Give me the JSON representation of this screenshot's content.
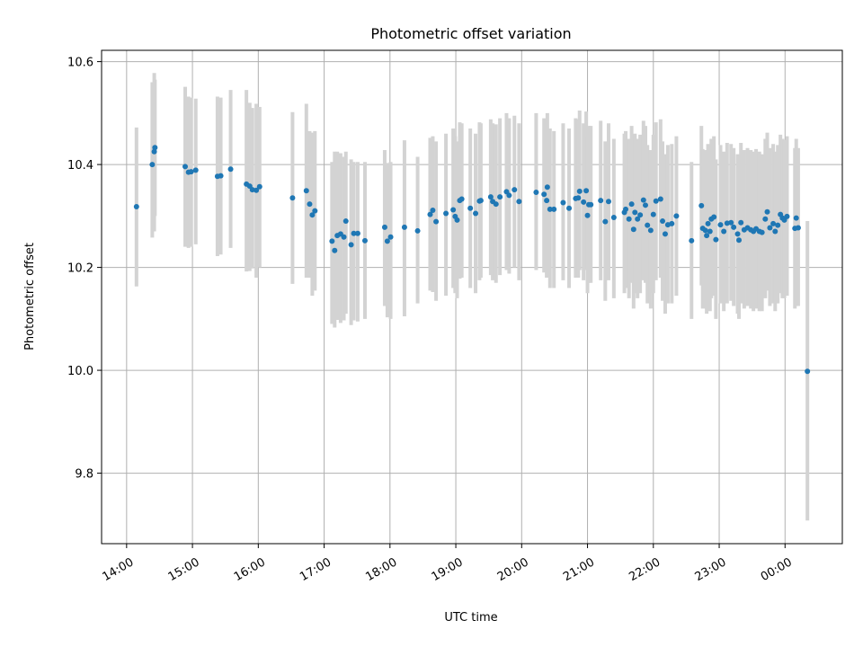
{
  "chart_data": {
    "type": "scatter",
    "title": "Photometric offset variation",
    "xlabel": "UTC time",
    "ylabel": "Photometric offset",
    "xlim": [
      13.62,
      24.87
    ],
    "ylim": [
      9.663,
      10.622
    ],
    "grid": true,
    "xticks": [
      {
        "value": 14,
        "label": "14:00"
      },
      {
        "value": 15,
        "label": "15:00"
      },
      {
        "value": 16,
        "label": "16:00"
      },
      {
        "value": 17,
        "label": "17:00"
      },
      {
        "value": 18,
        "label": "18:00"
      },
      {
        "value": 19,
        "label": "19:00"
      },
      {
        "value": 20,
        "label": "20:00"
      },
      {
        "value": 21,
        "label": "21:00"
      },
      {
        "value": 22,
        "label": "22:00"
      },
      {
        "value": 23,
        "label": "23:00"
      },
      {
        "value": 24,
        "label": "00:00"
      }
    ],
    "yticks": [
      {
        "value": 9.8,
        "label": "9.8"
      },
      {
        "value": 10.0,
        "label": "10.0"
      },
      {
        "value": 10.2,
        "label": "10.2"
      },
      {
        "value": 10.4,
        "label": "10.4"
      },
      {
        "value": 10.6,
        "label": "10.6"
      }
    ],
    "series": [
      {
        "name": "offset",
        "color": "#1f77b4",
        "errorbar_color": "#d3d3d3",
        "points": [
          [
            14.15,
            10.318,
            10.163,
            10.472
          ],
          [
            14.39,
            10.4,
            10.258,
            10.56
          ],
          [
            14.42,
            10.425,
            10.27,
            10.578
          ],
          [
            14.43,
            10.433,
            10.3,
            10.565
          ],
          [
            14.89,
            10.396,
            10.24,
            10.551
          ],
          [
            14.94,
            10.385,
            10.238,
            10.532
          ],
          [
            14.98,
            10.386,
            10.24,
            10.53
          ],
          [
            15.05,
            10.389,
            10.245,
            10.528
          ],
          [
            15.38,
            10.377,
            10.222,
            10.532
          ],
          [
            15.43,
            10.378,
            10.225,
            10.53
          ],
          [
            15.58,
            10.391,
            10.238,
            10.545
          ],
          [
            15.82,
            10.362,
            10.192,
            10.545
          ],
          [
            15.87,
            10.358,
            10.193,
            10.52
          ],
          [
            15.91,
            10.351,
            10.198,
            10.51
          ],
          [
            15.97,
            10.35,
            10.18,
            10.518
          ],
          [
            16.02,
            10.357,
            10.2,
            10.512
          ],
          [
            16.52,
            10.335,
            10.168,
            10.502
          ],
          [
            16.73,
            10.349,
            10.18,
            10.518
          ],
          [
            16.78,
            10.323,
            10.18,
            10.465
          ],
          [
            16.82,
            10.302,
            10.145,
            10.462
          ],
          [
            16.86,
            10.31,
            10.155,
            10.465
          ],
          [
            17.12,
            10.251,
            10.09,
            10.405
          ],
          [
            17.16,
            10.233,
            10.083,
            10.425
          ],
          [
            17.2,
            10.262,
            10.098,
            10.425
          ],
          [
            17.25,
            10.265,
            10.092,
            10.422
          ],
          [
            17.3,
            10.259,
            10.097,
            10.415
          ],
          [
            17.33,
            10.29,
            10.11,
            10.425
          ],
          [
            17.41,
            10.244,
            10.088,
            10.41
          ],
          [
            17.45,
            10.266,
            10.097,
            10.405
          ],
          [
            17.51,
            10.266,
            10.095,
            10.405
          ],
          [
            17.62,
            10.252,
            10.1,
            10.405
          ],
          [
            17.92,
            10.278,
            10.125,
            10.428
          ],
          [
            17.96,
            10.251,
            10.103,
            10.403
          ],
          [
            18.01,
            10.259,
            10.1,
            10.405
          ],
          [
            18.22,
            10.278,
            10.105,
            10.447
          ],
          [
            18.42,
            10.271,
            10.13,
            10.415
          ],
          [
            18.61,
            10.303,
            10.155,
            10.452
          ],
          [
            18.65,
            10.311,
            10.152,
            10.455
          ],
          [
            18.7,
            10.289,
            10.135,
            10.445
          ],
          [
            18.85,
            10.305,
            10.145,
            10.46
          ],
          [
            18.96,
            10.312,
            10.16,
            10.47
          ],
          [
            18.99,
            10.299,
            10.15,
            10.455
          ],
          [
            19.02,
            10.292,
            10.14,
            10.445
          ],
          [
            19.06,
            10.33,
            10.178,
            10.482
          ],
          [
            19.09,
            10.333,
            10.18,
            10.48
          ],
          [
            19.22,
            10.315,
            10.16,
            10.47
          ],
          [
            19.3,
            10.305,
            10.15,
            10.46
          ],
          [
            19.36,
            10.329,
            10.175,
            10.482
          ],
          [
            19.38,
            10.33,
            10.18,
            10.48
          ],
          [
            19.53,
            10.337,
            10.185,
            10.488
          ],
          [
            19.56,
            10.328,
            10.175,
            10.48
          ],
          [
            19.61,
            10.323,
            10.17,
            10.478
          ],
          [
            19.67,
            10.337,
            10.185,
            10.49
          ],
          [
            19.77,
            10.347,
            10.195,
            10.5
          ],
          [
            19.81,
            10.34,
            10.188,
            10.49
          ],
          [
            19.89,
            10.351,
            10.2,
            10.495
          ],
          [
            19.96,
            10.328,
            10.175,
            10.48
          ],
          [
            20.22,
            10.346,
            10.195,
            10.5
          ],
          [
            20.34,
            10.342,
            10.19,
            10.49
          ],
          [
            20.38,
            10.33,
            10.18,
            10.48
          ],
          [
            20.39,
            10.356,
            10.2,
            10.5
          ],
          [
            20.43,
            10.313,
            10.16,
            10.47
          ],
          [
            20.49,
            10.313,
            10.16,
            10.465
          ],
          [
            20.63,
            10.326,
            10.175,
            10.48
          ],
          [
            20.72,
            10.315,
            10.16,
            10.47
          ],
          [
            20.82,
            10.334,
            10.18,
            10.49
          ],
          [
            20.86,
            10.335,
            10.18,
            10.488
          ],
          [
            20.88,
            10.348,
            10.195,
            10.505
          ],
          [
            20.94,
            10.327,
            10.175,
            10.48
          ],
          [
            20.98,
            10.349,
            10.195,
            10.503
          ],
          [
            21.0,
            10.301,
            10.15,
            10.455
          ],
          [
            21.02,
            10.322,
            10.17,
            10.475
          ],
          [
            21.05,
            10.322,
            10.17,
            10.475
          ],
          [
            21.2,
            10.33,
            10.175,
            10.485
          ],
          [
            21.27,
            10.289,
            10.135,
            10.445
          ],
          [
            21.32,
            10.328,
            10.175,
            10.48
          ],
          [
            21.4,
            10.297,
            10.14,
            10.45
          ],
          [
            21.56,
            10.307,
            10.15,
            10.46
          ],
          [
            21.58,
            10.313,
            10.16,
            10.465
          ],
          [
            21.63,
            10.294,
            10.14,
            10.45
          ],
          [
            21.67,
            10.323,
            10.17,
            10.475
          ],
          [
            21.7,
            10.274,
            10.12,
            10.428
          ],
          [
            21.72,
            10.307,
            10.15,
            10.46
          ],
          [
            21.76,
            10.294,
            10.14,
            10.45
          ],
          [
            21.8,
            10.302,
            10.15,
            10.458
          ],
          [
            21.85,
            10.331,
            10.175,
            10.485
          ],
          [
            21.88,
            10.321,
            10.17,
            10.475
          ],
          [
            21.91,
            10.282,
            10.13,
            10.438
          ],
          [
            21.96,
            10.272,
            10.12,
            10.428
          ],
          [
            22.0,
            10.303,
            10.15,
            10.458
          ],
          [
            22.04,
            10.329,
            10.175,
            10.482
          ],
          [
            22.11,
            10.333,
            10.18,
            10.488
          ],
          [
            22.14,
            10.29,
            10.135,
            10.445
          ],
          [
            22.18,
            10.265,
            10.11,
            10.42
          ],
          [
            22.22,
            10.283,
            10.13,
            10.438
          ],
          [
            22.28,
            10.285,
            10.13,
            10.44
          ],
          [
            22.35,
            10.3,
            10.145,
            10.455
          ],
          [
            22.58,
            10.252,
            10.1,
            10.405
          ],
          [
            22.73,
            10.32,
            10.165,
            10.475
          ],
          [
            22.75,
            10.276,
            10.12,
            10.43
          ],
          [
            22.79,
            10.272,
            10.12,
            10.428
          ],
          [
            22.81,
            10.262,
            10.11,
            10.418
          ],
          [
            22.83,
            10.285,
            10.13,
            10.44
          ],
          [
            22.86,
            10.27,
            10.115,
            10.425
          ],
          [
            22.88,
            10.294,
            10.14,
            10.45
          ],
          [
            22.92,
            10.298,
            10.145,
            10.455
          ],
          [
            22.95,
            10.254,
            10.1,
            10.41
          ],
          [
            23.02,
            10.283,
            10.13,
            10.438
          ],
          [
            23.07,
            10.27,
            10.115,
            10.425
          ],
          [
            23.12,
            10.286,
            10.13,
            10.442
          ],
          [
            23.18,
            10.287,
            10.135,
            10.44
          ],
          [
            23.22,
            10.278,
            10.125,
            10.432
          ],
          [
            23.28,
            10.265,
            10.11,
            10.42
          ],
          [
            23.3,
            10.253,
            10.1,
            10.405
          ],
          [
            23.33,
            10.287,
            10.13,
            10.442
          ],
          [
            23.38,
            10.273,
            10.12,
            10.428
          ],
          [
            23.43,
            10.277,
            10.125,
            10.432
          ],
          [
            23.48,
            10.273,
            10.12,
            10.428
          ],
          [
            23.52,
            10.27,
            10.115,
            10.425
          ],
          [
            23.56,
            10.275,
            10.12,
            10.43
          ],
          [
            23.61,
            10.27,
            10.115,
            10.425
          ],
          [
            23.65,
            10.268,
            10.115,
            10.42
          ],
          [
            23.7,
            10.294,
            10.14,
            10.45
          ],
          [
            23.73,
            10.308,
            10.155,
            10.462
          ],
          [
            23.77,
            10.277,
            10.125,
            10.432
          ],
          [
            23.82,
            10.285,
            10.13,
            10.44
          ],
          [
            23.85,
            10.27,
            10.115,
            10.425
          ],
          [
            23.89,
            10.282,
            10.13,
            10.438
          ],
          [
            23.93,
            10.303,
            10.15,
            10.458
          ],
          [
            23.96,
            10.296,
            10.14,
            10.45
          ],
          [
            23.99,
            10.292,
            10.14,
            10.448
          ],
          [
            24.03,
            10.299,
            10.145,
            10.455
          ],
          [
            24.15,
            10.276,
            10.12,
            10.432
          ],
          [
            24.17,
            10.296,
            10.14,
            10.45
          ],
          [
            24.2,
            10.277,
            10.125,
            10.432
          ],
          [
            24.34,
            9.998,
            9.708,
            10.29
          ]
        ]
      }
    ]
  }
}
